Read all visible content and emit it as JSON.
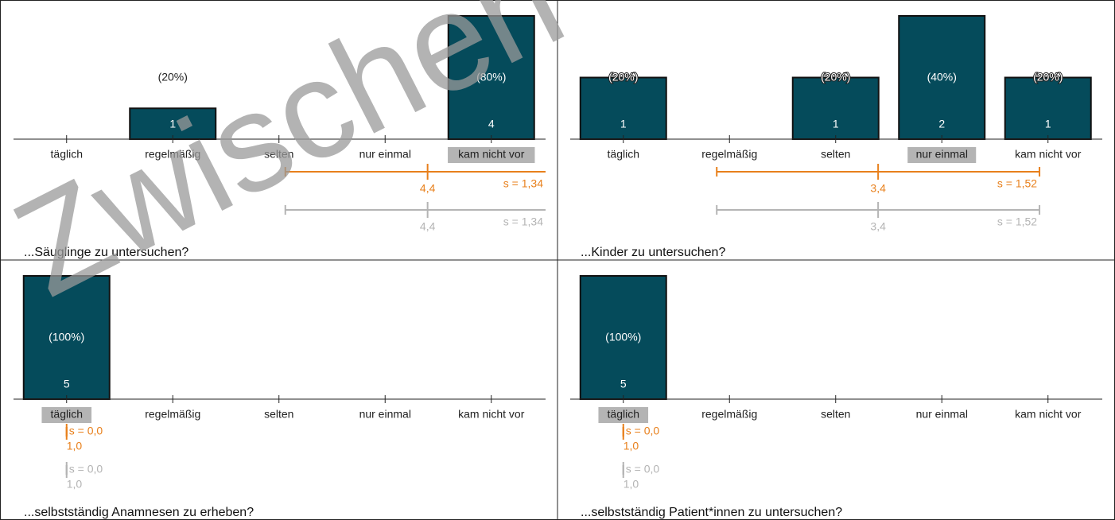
{
  "watermark": "Zwischen",
  "chart_data": [
    {
      "type": "bar",
      "title": "...Säuglinge zu untersuchen?",
      "categories": [
        "täglich",
        "regelmäßig",
        "selten",
        "nur einmal",
        "kam nicht vor"
      ],
      "values": [
        0,
        1,
        0,
        0,
        4
      ],
      "percentages": [
        null,
        20,
        null,
        null,
        80
      ],
      "percentage_labels": [
        null,
        "(20%)",
        null,
        null,
        "(80%)"
      ],
      "ylim": [
        0,
        4
      ],
      "color": "#054b5b",
      "highlight_category": 4,
      "stats": [
        {
          "color": "#e8801c",
          "mean": 4.4,
          "mean_label": "4,4",
          "sd": 1.34,
          "sd_label": "s = 1,34"
        },
        {
          "color": "#b4b4b4",
          "mean": 4.4,
          "mean_label": "4,4",
          "sd": 1.34,
          "sd_label": "s = 1,34"
        }
      ]
    },
    {
      "type": "bar",
      "title": "...Kinder zu untersuchen?",
      "categories": [
        "täglich",
        "regelmäßig",
        "selten",
        "nur einmal",
        "kam nicht vor"
      ],
      "values": [
        1,
        0,
        1,
        2,
        1
      ],
      "percentages": [
        20,
        null,
        20,
        40,
        20
      ],
      "percentage_labels": [
        "(20%)",
        null,
        "(20%)",
        "(40%)",
        "(20%)"
      ],
      "ylim": [
        0,
        2
      ],
      "color": "#054b5b",
      "highlight_category": 3,
      "stats": [
        {
          "color": "#e8801c",
          "mean": 3.4,
          "mean_label": "3,4",
          "sd": 1.52,
          "sd_label": "s = 1,52"
        },
        {
          "color": "#b4b4b4",
          "mean": 3.4,
          "mean_label": "3,4",
          "sd": 1.52,
          "sd_label": "s = 1,52"
        }
      ]
    },
    {
      "type": "bar",
      "title": "...selbstständig Anamnesen zu erheben?",
      "categories": [
        "täglich",
        "regelmäßig",
        "selten",
        "nur einmal",
        "kam nicht vor"
      ],
      "values": [
        5,
        0,
        0,
        0,
        0
      ],
      "percentages": [
        100,
        null,
        null,
        null,
        null
      ],
      "percentage_labels": [
        "(100%)",
        null,
        null,
        null,
        null
      ],
      "ylim": [
        0,
        5
      ],
      "color": "#054b5b",
      "highlight_category": 0,
      "stats": [
        {
          "color": "#e8801c",
          "mean": 1.0,
          "mean_label": "1,0",
          "sd": 0.0,
          "sd_label": "s = 0,0"
        },
        {
          "color": "#b4b4b4",
          "mean": 1.0,
          "mean_label": "1,0",
          "sd": 0.0,
          "sd_label": "s = 0,0"
        }
      ]
    },
    {
      "type": "bar",
      "title": "...selbstständig Patient*innen zu untersuchen?",
      "categories": [
        "täglich",
        "regelmäßig",
        "selten",
        "nur einmal",
        "kam nicht vor"
      ],
      "values": [
        5,
        0,
        0,
        0,
        0
      ],
      "percentages": [
        100,
        null,
        null,
        null,
        null
      ],
      "percentage_labels": [
        "(100%)",
        null,
        null,
        null,
        null
      ],
      "ylim": [
        0,
        5
      ],
      "color": "#054b5b",
      "highlight_category": 0,
      "stats": [
        {
          "color": "#e8801c",
          "mean": 1.0,
          "mean_label": "1,0",
          "sd": 0.0,
          "sd_label": "s = 0,0"
        },
        {
          "color": "#b4b4b4",
          "mean": 1.0,
          "mean_label": "1,0",
          "sd": 0.0,
          "sd_label": "s = 0,0"
        }
      ]
    }
  ]
}
